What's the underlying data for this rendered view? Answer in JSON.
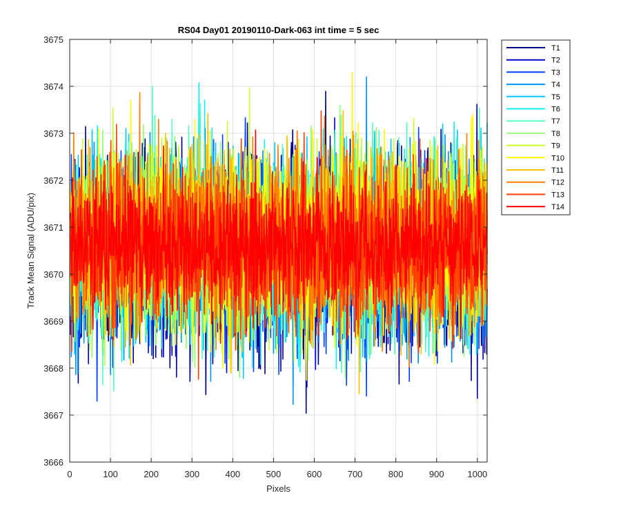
{
  "chart_data": {
    "type": "line",
    "title": "RS04 Day01 20190110-Dark-063 int time = 5 sec",
    "xlabel": "Pixels",
    "ylabel": "Track Mean Signal (ADU/pix)",
    "xlim": [
      0,
      1024
    ],
    "ylim": [
      3666,
      3675
    ],
    "xticks": [
      0,
      100,
      200,
      300,
      400,
      500,
      600,
      700,
      800,
      900,
      1000
    ],
    "yticks": [
      3666,
      3667,
      3668,
      3669,
      3670,
      3671,
      3672,
      3673,
      3674,
      3675
    ],
    "grid": true,
    "legend_position": "outside-top-right",
    "series_points": 1024,
    "series": [
      {
        "name": "T1",
        "color": "#00008F",
        "mean": 3670.35,
        "std": 1.05,
        "min": 3666.15,
        "max": 3673.9
      },
      {
        "name": "T2",
        "color": "#0000CC",
        "mean": 3670.4,
        "std": 1.0,
        "min": 3667.0,
        "max": 3674.0
      },
      {
        "name": "T3",
        "color": "#0040FF",
        "mean": 3670.45,
        "std": 0.95,
        "min": 3667.3,
        "max": 3674.3
      },
      {
        "name": "T4",
        "color": "#0090FF",
        "mean": 3670.5,
        "std": 0.95,
        "min": 3667.2,
        "max": 3674.2
      },
      {
        "name": "T5",
        "color": "#00C8FF",
        "mean": 3670.55,
        "std": 0.95,
        "min": 3666.2,
        "max": 3674.6
      },
      {
        "name": "T6",
        "color": "#10F0F0",
        "mean": 3670.6,
        "std": 0.95,
        "min": 3667.2,
        "max": 3674.5
      },
      {
        "name": "T7",
        "color": "#50FFC0",
        "mean": 3670.65,
        "std": 0.95,
        "min": 3667.5,
        "max": 3674.0
      },
      {
        "name": "T8",
        "color": "#90FF70",
        "mean": 3670.7,
        "std": 0.95,
        "min": 3667.8,
        "max": 3674.2
      },
      {
        "name": "T9",
        "color": "#C8FF30",
        "mean": 3670.75,
        "std": 0.95,
        "min": 3667.9,
        "max": 3674.2
      },
      {
        "name": "T10",
        "color": "#FFFF00",
        "mean": 3670.8,
        "std": 0.95,
        "min": 3667.3,
        "max": 3674.3
      },
      {
        "name": "T11",
        "color": "#FFC000",
        "mean": 3670.75,
        "std": 0.9,
        "min": 3667.2,
        "max": 3673.9
      },
      {
        "name": "T12",
        "color": "#FF8000",
        "mean": 3670.65,
        "std": 0.9,
        "min": 3667.3,
        "max": 3674.1
      },
      {
        "name": "T13",
        "color": "#FF4000",
        "mean": 3670.55,
        "std": 0.85,
        "min": 3667.2,
        "max": 3674.1
      },
      {
        "name": "T14",
        "color": "#FF0000",
        "mean": 3670.6,
        "std": 0.7,
        "min": 3668.0,
        "max": 3673.2
      }
    ]
  },
  "colors": {
    "axis": "#262626",
    "grid": "#DFDFDF",
    "legend_border": "#262626"
  }
}
